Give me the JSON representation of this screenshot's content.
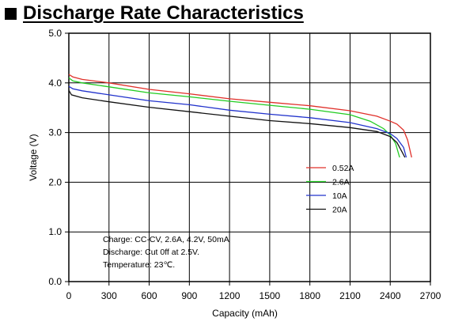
{
  "chart_data": {
    "type": "line",
    "title": "Discharge Rate Characteristics",
    "xlabel": "Capacity (mAh)",
    "ylabel": "Voltage (V)",
    "xlim": [
      0,
      2700
    ],
    "ylim": [
      0.0,
      5.0
    ],
    "x_ticks": [
      "0",
      "300",
      "600",
      "900",
      "1200",
      "1500",
      "1800",
      "2100",
      "2400",
      "2700"
    ],
    "y_ticks": [
      "0.0",
      "1.0",
      "2.0",
      "3.0",
      "4.0",
      "5.0"
    ],
    "grid": true,
    "legend_position": "right-middle",
    "series": [
      {
        "name": "0.52A",
        "color": "#e0302a",
        "points": [
          [
            0,
            4.17
          ],
          [
            30,
            4.12
          ],
          [
            100,
            4.07
          ],
          [
            300,
            4.0
          ],
          [
            600,
            3.87
          ],
          [
            900,
            3.78
          ],
          [
            1200,
            3.68
          ],
          [
            1500,
            3.61
          ],
          [
            1800,
            3.54
          ],
          [
            2100,
            3.44
          ],
          [
            2300,
            3.33
          ],
          [
            2400,
            3.23
          ],
          [
            2450,
            3.17
          ],
          [
            2500,
            3.05
          ],
          [
            2530,
            2.85
          ],
          [
            2560,
            2.5
          ]
        ]
      },
      {
        "name": "2.6A",
        "color": "#22cc22",
        "points": [
          [
            0,
            4.1
          ],
          [
            30,
            4.04
          ],
          [
            100,
            4.0
          ],
          [
            300,
            3.92
          ],
          [
            600,
            3.8
          ],
          [
            900,
            3.72
          ],
          [
            1200,
            3.63
          ],
          [
            1500,
            3.55
          ],
          [
            1800,
            3.47
          ],
          [
            2100,
            3.36
          ],
          [
            2250,
            3.23
          ],
          [
            2350,
            3.08
          ],
          [
            2400,
            2.95
          ],
          [
            2440,
            2.78
          ],
          [
            2470,
            2.5
          ]
        ]
      },
      {
        "name": "10A",
        "color": "#2233cc",
        "points": [
          [
            0,
            3.93
          ],
          [
            30,
            3.88
          ],
          [
            100,
            3.84
          ],
          [
            300,
            3.76
          ],
          [
            600,
            3.64
          ],
          [
            900,
            3.56
          ],
          [
            1200,
            3.45
          ],
          [
            1500,
            3.37
          ],
          [
            1800,
            3.3
          ],
          [
            2100,
            3.2
          ],
          [
            2300,
            3.08
          ],
          [
            2400,
            2.98
          ],
          [
            2450,
            2.88
          ],
          [
            2500,
            2.7
          ],
          [
            2520,
            2.5
          ]
        ]
      },
      {
        "name": "20A",
        "color": "#111111",
        "points": [
          [
            0,
            3.85
          ],
          [
            20,
            3.76
          ],
          [
            100,
            3.7
          ],
          [
            300,
            3.62
          ],
          [
            600,
            3.51
          ],
          [
            900,
            3.42
          ],
          [
            1200,
            3.33
          ],
          [
            1500,
            3.24
          ],
          [
            1800,
            3.18
          ],
          [
            2100,
            3.1
          ],
          [
            2300,
            3.02
          ],
          [
            2400,
            2.92
          ],
          [
            2450,
            2.8
          ],
          [
            2490,
            2.6
          ],
          [
            2510,
            2.5
          ]
        ]
      }
    ],
    "annotations": [
      "Charge: CC-CV, 2.6A, 4.2V, 50mA",
      "Discharge: Cut 0ff at 2.5V.",
      "Temperature: 23℃."
    ]
  }
}
